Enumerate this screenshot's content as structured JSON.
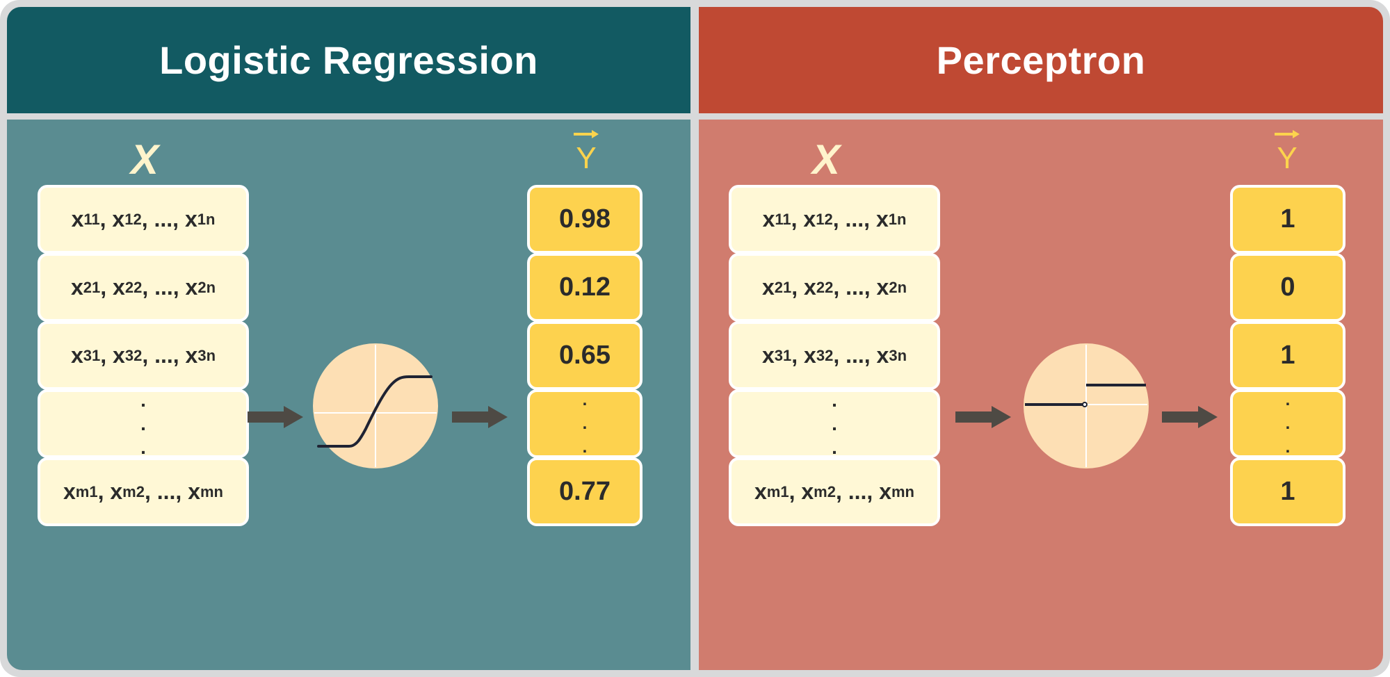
{
  "colors": {
    "lr_header": "#125a62",
    "lr_body": "#5a8c91",
    "pc_header": "#bf4933",
    "pc_body": "#d07c6e",
    "cell_x": "#fff8d6",
    "cell_y": "#fdd24e",
    "circle_fill": "#fddfb4",
    "arrow": "#4e4a44"
  },
  "panels": [
    {
      "title": "Logistic Regression",
      "x_label": "X",
      "y_label": "Y",
      "activation_icon": "sigmoid-curve-icon",
      "x_rows": [
        {
          "v": "x",
          "s1": "11",
          "s2": "12",
          "s3": "1n"
        },
        {
          "v": "x",
          "s1": "21",
          "s2": "22",
          "s3": "2n"
        },
        {
          "v": "x",
          "s1": "31",
          "s2": "32",
          "s3": "3n"
        },
        {
          "ellipsis": ":"
        },
        {
          "v": "x",
          "s1": "m1",
          "s2": "m2",
          "s3": "mn"
        }
      ],
      "y_values": [
        "0.98",
        "0.12",
        "0.65",
        ":",
        "0.77"
      ]
    },
    {
      "title": "Perceptron",
      "x_label": "X",
      "y_label": "Y",
      "activation_icon": "step-function-icon",
      "x_rows": [
        {
          "v": "x",
          "s1": "11",
          "s2": "12",
          "s3": "1n"
        },
        {
          "v": "x",
          "s1": "21",
          "s2": "22",
          "s3": "2n"
        },
        {
          "v": "x",
          "s1": "31",
          "s2": "32",
          "s3": "3n"
        },
        {
          "ellipsis": ":"
        },
        {
          "v": "x",
          "s1": "m1",
          "s2": "m2",
          "s3": "mn"
        }
      ],
      "y_values": [
        "1",
        "0",
        "1",
        ":",
        "1"
      ]
    }
  ]
}
